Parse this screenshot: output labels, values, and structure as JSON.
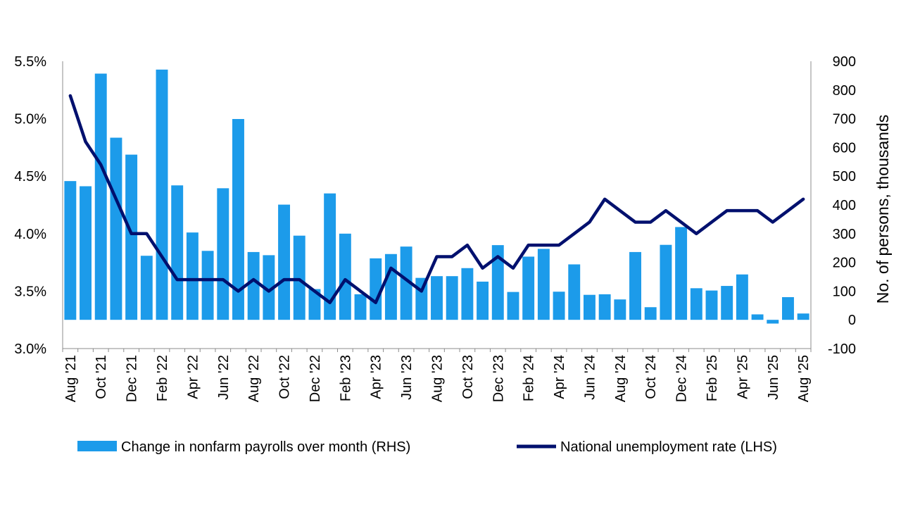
{
  "chart_data": {
    "type": "bar",
    "categories": [
      "Aug '21",
      "Sep '21",
      "Oct '21",
      "Nov '21",
      "Dec '21",
      "Jan '22",
      "Feb '22",
      "Mar '22",
      "Apr '22",
      "May '22",
      "Jun '22",
      "Jul '22",
      "Aug '22",
      "Sep '22",
      "Oct '22",
      "Nov '22",
      "Dec '22",
      "Jan '23",
      "Feb '23",
      "Mar '23",
      "Apr '23",
      "May '23",
      "Jun '23",
      "Jul '23",
      "Aug '23",
      "Sep '23",
      "Oct '23",
      "Nov '23",
      "Dec '23",
      "Jan '24",
      "Feb '24",
      "Mar '24",
      "Apr '24",
      "May '24",
      "Jun '24",
      "Jul '24",
      "Aug '24",
      "Sep '24",
      "Oct '24",
      "Nov '24",
      "Dec '24",
      "Jan '25",
      "Feb '25",
      "Mar '25",
      "Apr '25",
      "May '25",
      "Jun '25",
      "Jul '25",
      "Aug '25"
    ],
    "tick_labels": [
      "Aug '21",
      "Oct '21",
      "Dec '21",
      "Feb '22",
      "Apr '22",
      "Jun '22",
      "Aug '22",
      "Oct '22",
      "Dec '22",
      "Feb '23",
      "Apr '23",
      "Jun '23",
      "Aug '23",
      "Oct '23",
      "Dec '23",
      "Feb '24",
      "Apr '24",
      "Jun '24",
      "Aug '24",
      "Oct '24",
      "Dec '24",
      "Feb '25",
      "Apr '25",
      "Jun '25",
      "Aug '25"
    ],
    "series": [
      {
        "name": "Change in nonfarm payrolls over month (RHS)",
        "type": "bar",
        "axis": "right",
        "color": "#1C9BEA",
        "values": [
          483,
          465,
          857,
          634,
          575,
          223,
          871,
          468,
          304,
          240,
          458,
          699,
          236,
          225,
          401,
          293,
          107,
          440,
          300,
          89,
          214,
          229,
          255,
          146,
          152,
          152,
          180,
          133,
          260,
          97,
          220,
          247,
          98,
          193,
          87,
          89,
          71,
          236,
          44,
          261,
          323,
          110,
          102,
          118,
          158,
          19,
          -13,
          79,
          22
        ]
      },
      {
        "name": "National unemployment rate (LHS)",
        "type": "line",
        "axis": "left",
        "color": "#00106E",
        "values": [
          5.2,
          4.8,
          4.6,
          4.3,
          4.0,
          4.0,
          3.8,
          3.6,
          3.6,
          3.6,
          3.6,
          3.5,
          3.6,
          3.5,
          3.6,
          3.6,
          3.5,
          3.4,
          3.6,
          3.5,
          3.4,
          3.7,
          3.6,
          3.5,
          3.8,
          3.8,
          3.9,
          3.7,
          3.8,
          3.7,
          3.9,
          3.9,
          3.9,
          4.0,
          4.1,
          4.3,
          4.2,
          4.1,
          4.1,
          4.2,
          4.1,
          4.0,
          4.1,
          4.2,
          4.2,
          4.2,
          4.1,
          4.2,
          4.3
        ]
      }
    ],
    "left_axis": {
      "ylim": [
        3.0,
        5.5
      ],
      "ticks": [
        "5.5%",
        "5.0%",
        "4.5%",
        "4.0%",
        "3.5%",
        "3.0%"
      ]
    },
    "right_axis": {
      "ylim": [
        -100,
        900
      ],
      "ticks": [
        "900",
        "800",
        "700",
        "600",
        "500",
        "400",
        "300",
        "200",
        "100",
        "0",
        "-100"
      ],
      "label": "No. of persons, thousands"
    },
    "legend_placement": "bottom"
  }
}
